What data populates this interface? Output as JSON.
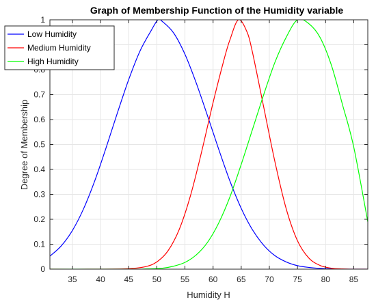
{
  "chart_data": {
    "type": "line",
    "title": "Graph of Membership Function of the Humidity variable",
    "xlabel": "Humidity H",
    "ylabel": "Degree of Membership",
    "xlim": [
      31,
      87.5
    ],
    "ylim": [
      0,
      1
    ],
    "x_ticks": [
      35,
      40,
      45,
      50,
      55,
      60,
      65,
      70,
      75,
      80,
      85
    ],
    "y_ticks": [
      0,
      0.1,
      0.2,
      0.3,
      0.4,
      0.5,
      0.6,
      0.7,
      0.8,
      0.9,
      1
    ],
    "grid": true,
    "legend_position": "top-left",
    "series": [
      {
        "name": "Low Humidity",
        "color": "#0000ff",
        "x": [
          31,
          33,
          35,
          37,
          39,
          41,
          43,
          45,
          47,
          49,
          50.2,
          51,
          53,
          55,
          57,
          59,
          61,
          63,
          65,
          67,
          69,
          71,
          73,
          75,
          77,
          79,
          81,
          83,
          85,
          87.5
        ],
        "y": [
          0.052,
          0.093,
          0.155,
          0.243,
          0.356,
          0.488,
          0.627,
          0.76,
          0.874,
          0.957,
          1.0,
          0.993,
          0.947,
          0.862,
          0.747,
          0.616,
          0.481,
          0.353,
          0.244,
          0.158,
          0.096,
          0.054,
          0.029,
          0.014,
          0.007,
          0.003,
          0.001,
          0.0,
          0.0,
          0.0
        ]
      },
      {
        "name": "Medium  Humidity",
        "color": "#ff0000",
        "x": [
          31,
          40,
          45,
          48,
          50,
          52,
          54,
          56,
          58,
          60,
          62,
          63,
          64.5,
          66,
          67,
          69,
          71,
          73,
          75,
          77,
          79,
          81,
          83,
          85,
          87.5
        ],
        "y": [
          0.0,
          0.0,
          0.002,
          0.01,
          0.029,
          0.074,
          0.16,
          0.296,
          0.474,
          0.668,
          0.845,
          0.92,
          1.0,
          0.953,
          0.87,
          0.65,
          0.43,
          0.242,
          0.114,
          0.045,
          0.015,
          0.004,
          0.001,
          0.0,
          0.0
        ]
      },
      {
        "name": "High Humidity",
        "color": "#00ff00",
        "x": [
          31,
          45,
          48,
          51,
          53,
          55,
          57,
          59,
          61,
          63,
          65,
          67,
          69,
          71,
          73,
          75,
          77,
          79,
          81,
          83,
          85,
          87.5
        ],
        "y": [
          0.0,
          0.0,
          0.001,
          0.004,
          0.012,
          0.027,
          0.057,
          0.107,
          0.185,
          0.29,
          0.42,
          0.56,
          0.7,
          0.83,
          0.93,
          1.0,
          0.985,
          0.93,
          0.82,
          0.66,
          0.49,
          0.19
        ]
      }
    ]
  }
}
